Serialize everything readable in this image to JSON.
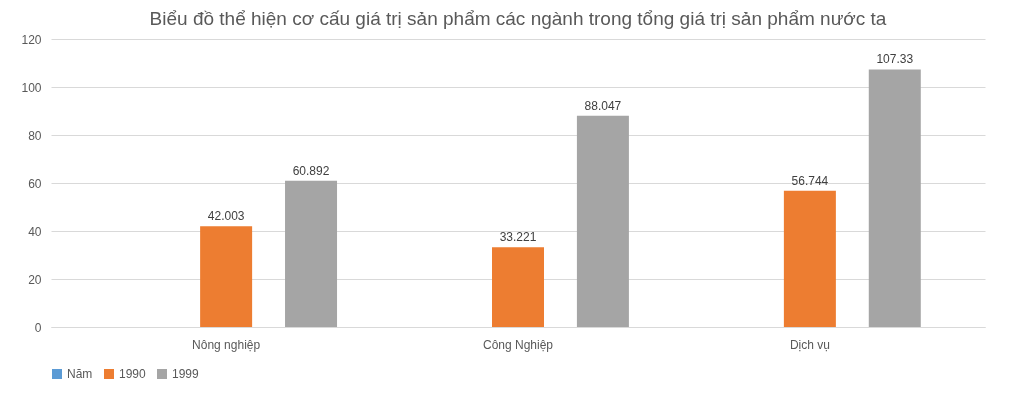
{
  "chart_data": {
    "type": "bar",
    "title": "Biểu đồ thể hiện cơ cấu giá trị sản phẩm các ngành trong tổng giá trị sản phẩm nước ta",
    "categories": [
      "Nông nghiệp",
      "Công Nghiệp",
      "Dịch vụ"
    ],
    "series": [
      {
        "name": "Năm",
        "color": "#5b9bd5",
        "values": [
          null,
          null,
          null
        ]
      },
      {
        "name": "1990",
        "color": "#ed7d31",
        "values": [
          42.003,
          33.221,
          56.744
        ]
      },
      {
        "name": "1999",
        "color": "#a5a5a5",
        "values": [
          60.892,
          88.047,
          107.33
        ]
      }
    ],
    "ylim": [
      0,
      120
    ],
    "yticks": [
      0,
      20,
      40,
      60,
      80,
      100,
      120
    ],
    "grid": "y",
    "legend": "bottom",
    "data_labels": true
  }
}
